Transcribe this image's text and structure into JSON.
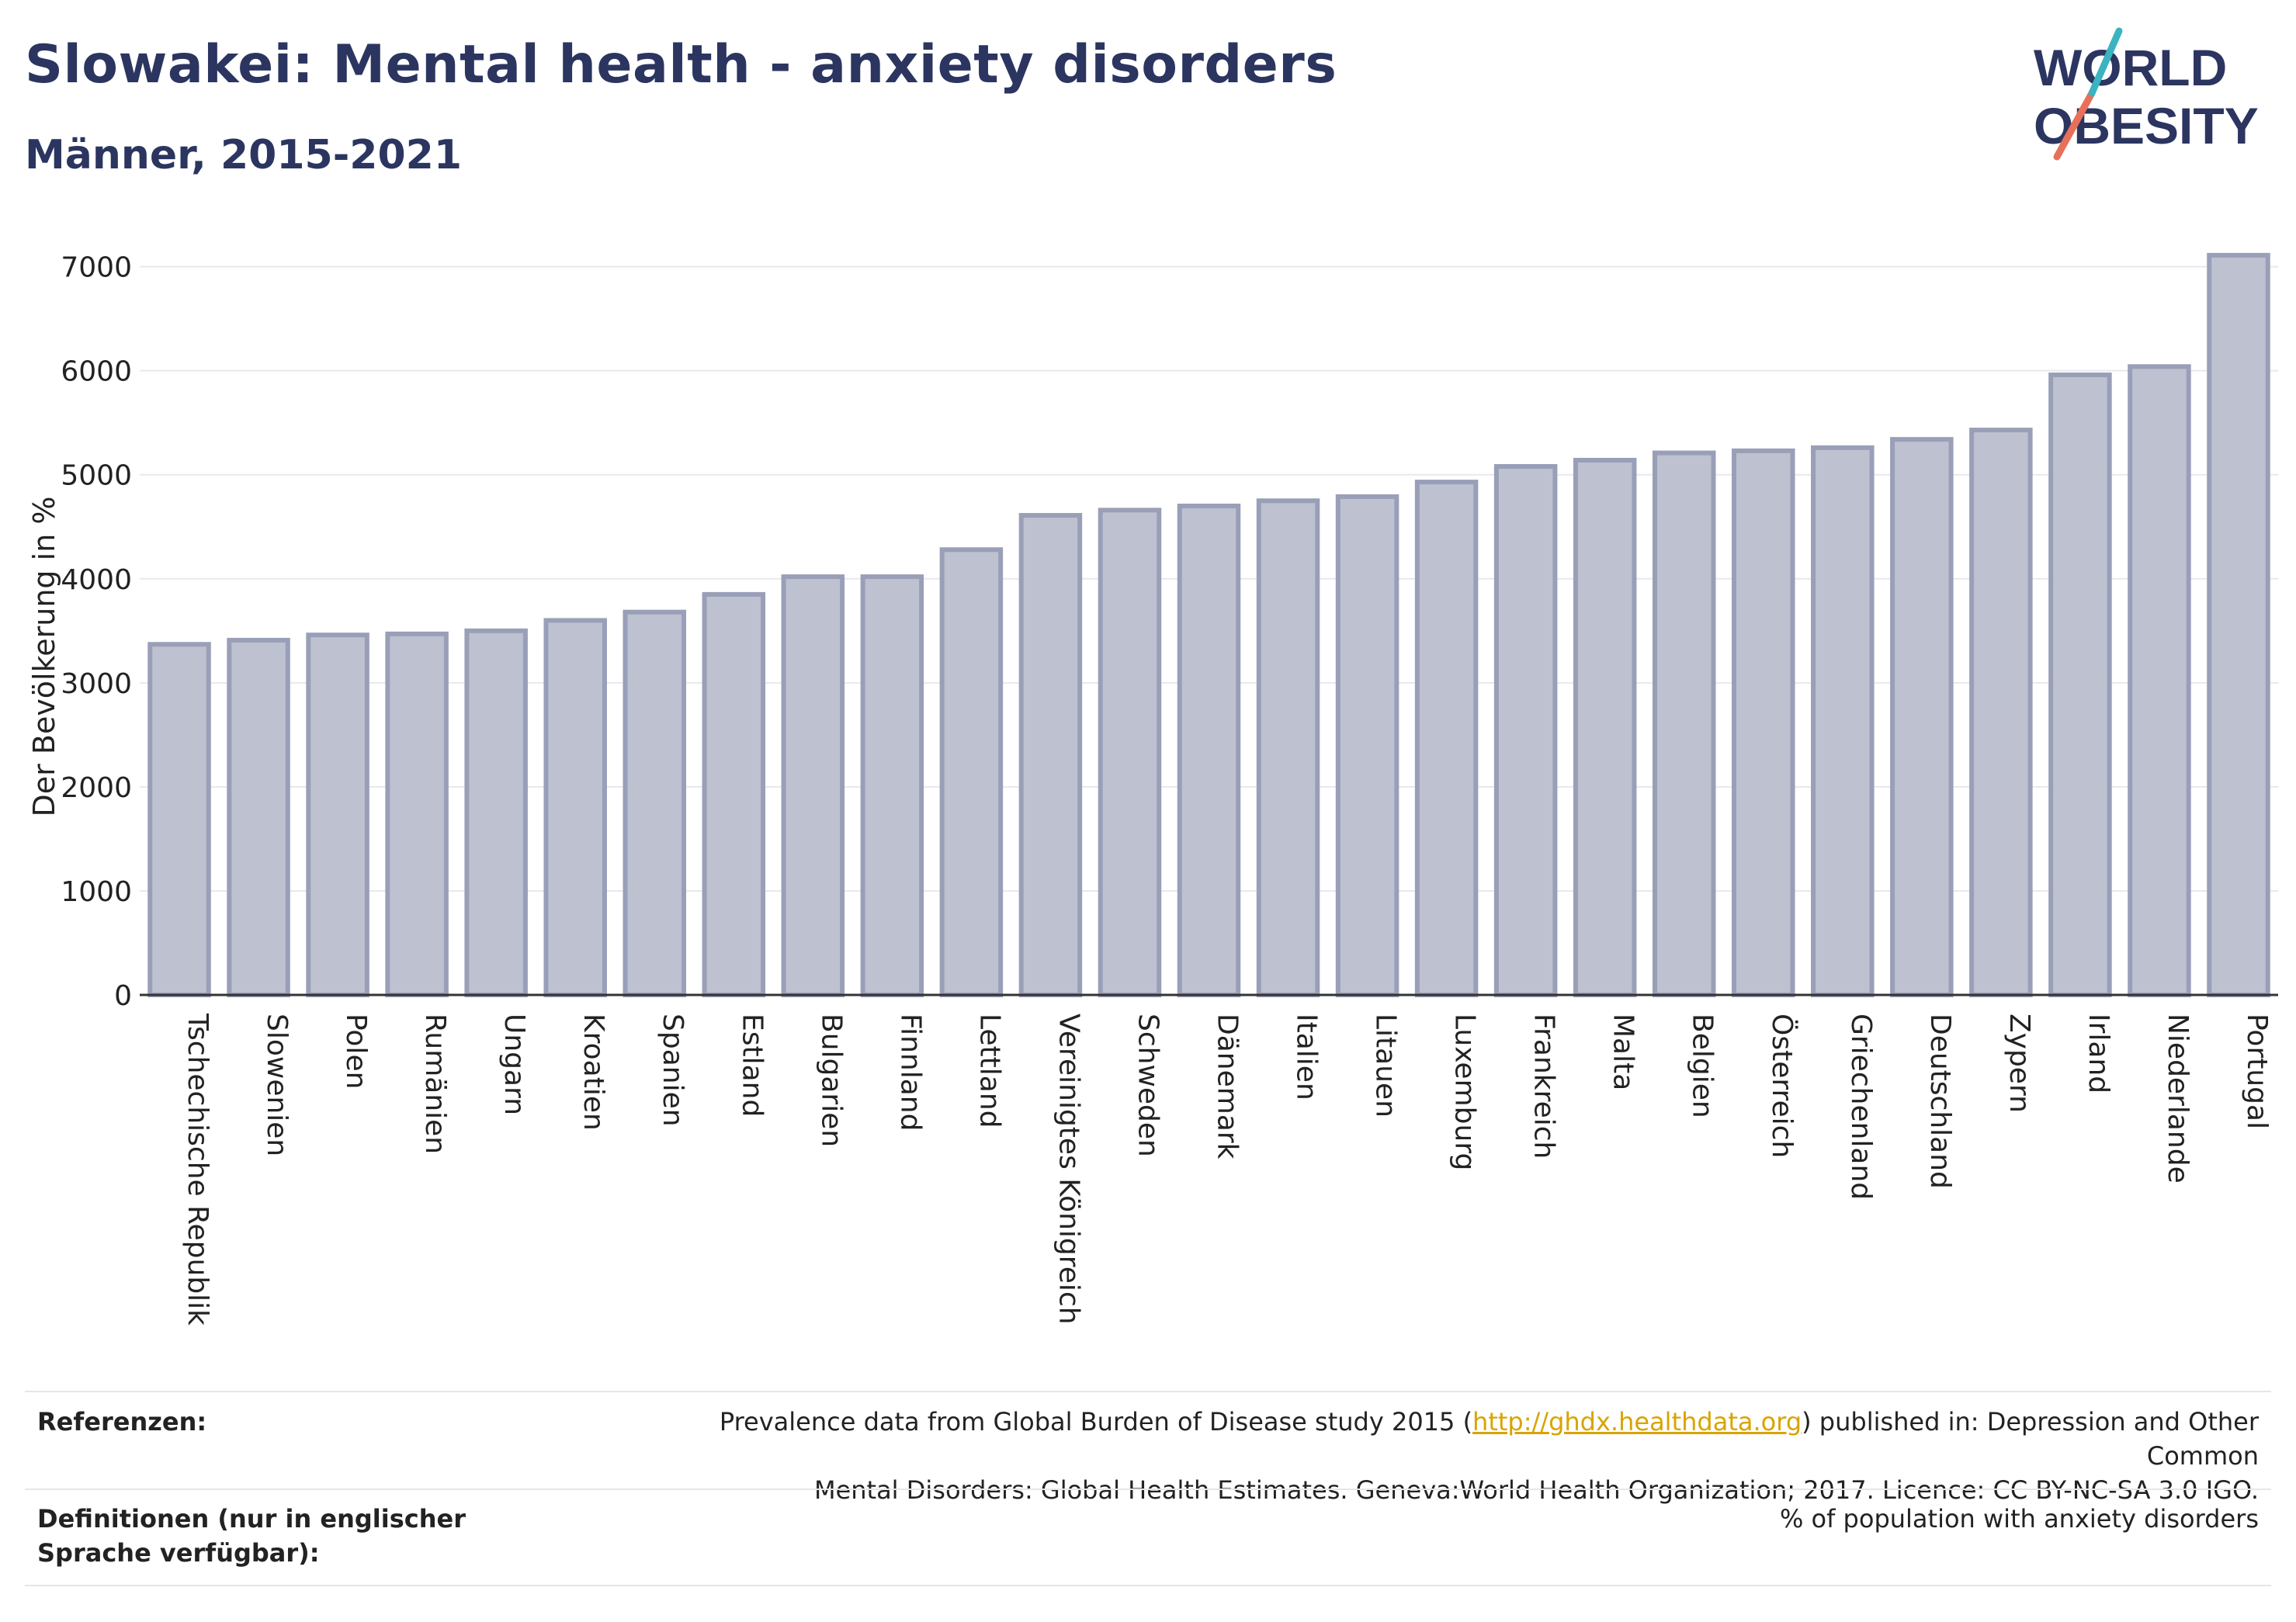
{
  "title": "Slowakei: Mental health - anxiety disorders",
  "subtitle": "Männer, 2015-2021",
  "logo": {
    "line1": "WORLD",
    "line2": "OBESITY",
    "accent_colors": [
      "#e8705a",
      "#3bb3c1"
    ]
  },
  "colors": {
    "bar_fill": "#bec1d0",
    "bar_stroke": "#9a9fb8",
    "text": "#2b3560",
    "grid": "#e8e8ee"
  },
  "chart_data": {
    "type": "bar",
    "ylabel": "Der Bevölkerung in %",
    "xlabel": "",
    "ylim": [
      0,
      7400
    ],
    "yticks": [
      0,
      1000,
      2000,
      3000,
      4000,
      5000,
      6000,
      7000
    ],
    "grid": true,
    "categories": [
      "Tschechische Republik",
      "Slowenien",
      "Polen",
      "Rumänien",
      "Ungarn",
      "Kroatien",
      "Spanien",
      "Estland",
      "Bulgarien",
      "Finnland",
      "Lettland",
      "Vereinigtes Königreich",
      "Schweden",
      "Dänemark",
      "Italien",
      "Litauen",
      "Luxemburg",
      "Frankreich",
      "Malta",
      "Belgien",
      "Österreich",
      "Griechenland",
      "Deutschland",
      "Zypern",
      "Irland",
      "Niederlande",
      "Portugal"
    ],
    "values": [
      3370,
      3410,
      3460,
      3470,
      3500,
      3600,
      3680,
      3850,
      4020,
      4020,
      4280,
      4610,
      4660,
      4700,
      4750,
      4790,
      4930,
      5080,
      5140,
      5210,
      5230,
      5260,
      5340,
      5430,
      5960,
      6040,
      7110
    ]
  },
  "footer": {
    "ref_label": "Referenzen:",
    "ref_text_before": "Prevalence data from Global Burden of Disease study 2015 (",
    "ref_link": "http://ghdx.healthdata.org",
    "ref_text_after": ") published in: Depression and Other Common",
    "ref_text_line2": "Mental Disorders: Global Health Estimates. Geneva:World Health Organization; 2017. Licence: CC BY-NC-SA 3.0 IGO.",
    "def_label": "Definitionen (nur in englischer Sprache verfügbar):",
    "def_text": "% of population with anxiety disorders"
  }
}
